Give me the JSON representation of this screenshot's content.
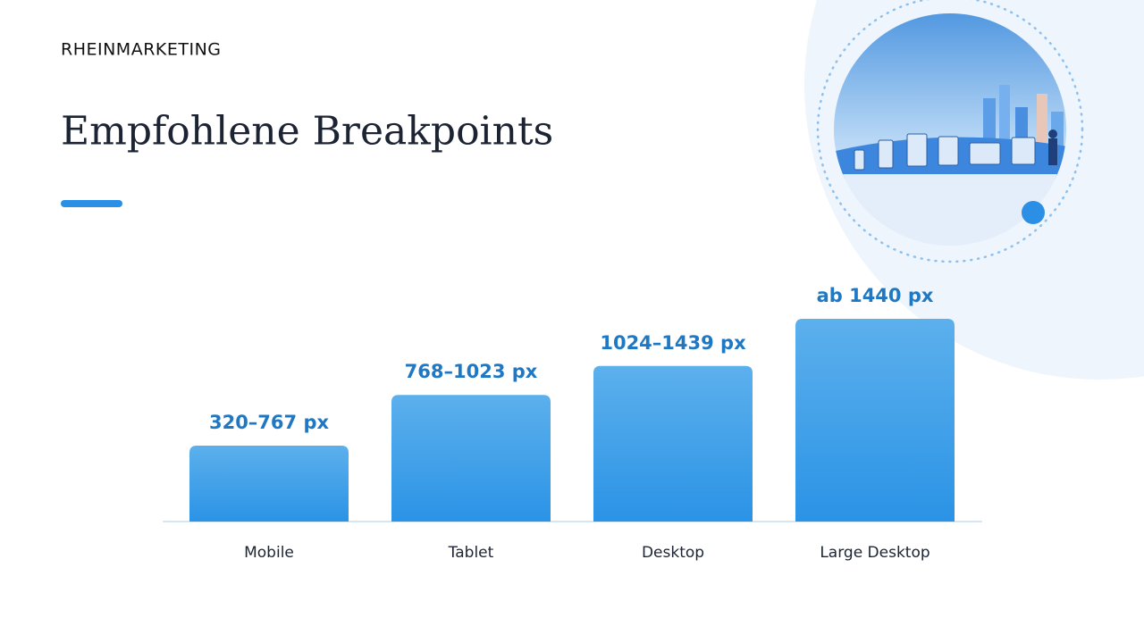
{
  "logo": "RHEINMARKETING",
  "chart_data": {
    "type": "bar",
    "title": "Empfohlene Breakpoints",
    "categories": [
      "Mobile",
      "Tablet",
      "Desktop",
      "Large Desktop"
    ],
    "values": [
      320,
      768,
      1024,
      1440
    ],
    "value_labels": [
      "320–767 px",
      "768–1023 px",
      "1024–1439 px",
      "ab 1440 px"
    ],
    "color": "#3a9be8",
    "ylim": [
      -350,
      1440
    ]
  }
}
